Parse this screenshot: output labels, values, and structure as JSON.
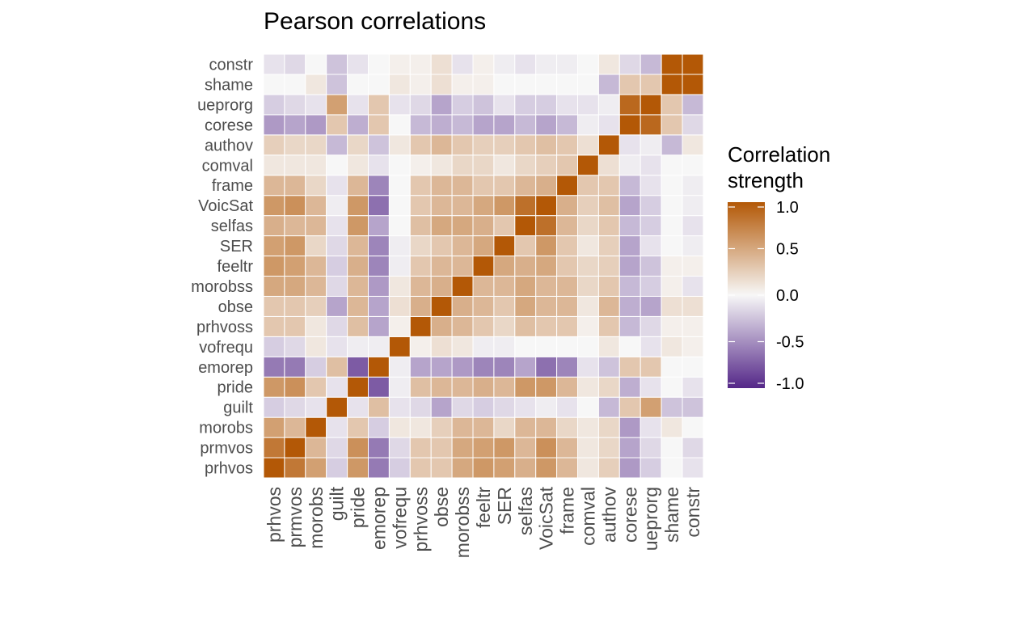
{
  "chart_data": {
    "type": "heatmap",
    "title": "Pearson correlations",
    "legend_title_lines": [
      "Correlation",
      "strength"
    ],
    "legend_ticks": [
      "1.0",
      "0.5",
      "0.0",
      "-0.5",
      "-1.0"
    ],
    "legend_tick_values": [
      1.0,
      0.5,
      0.0,
      -0.5,
      -1.0
    ],
    "legend_placement": "right",
    "value_range": [
      -1,
      1
    ],
    "colors": {
      "low": "#542788",
      "mid": "#f7f7f7",
      "high": "#b35806"
    },
    "grid": false,
    "variables": [
      "prhvos",
      "prmvos",
      "morobs",
      "guilt",
      "pride",
      "emorep",
      "vofrequ",
      "prhvoss",
      "obse",
      "morobss",
      "feeltr",
      "SER",
      "selfas",
      "VoicSat",
      "frame",
      "comval",
      "authov",
      "corese",
      "ueprorg",
      "shame",
      "constr"
    ],
    "matrix": [
      [
        1.0,
        0.8,
        0.55,
        -0.2,
        0.6,
        -0.6,
        -0.2,
        0.3,
        0.3,
        0.5,
        0.6,
        0.55,
        0.45,
        0.6,
        0.4,
        0.1,
        0.25,
        -0.45,
        -0.2,
        0.0,
        -0.1
      ],
      [
        0.8,
        1.0,
        0.4,
        -0.15,
        0.65,
        -0.6,
        -0.15,
        0.3,
        0.3,
        0.5,
        0.55,
        0.6,
        0.4,
        0.65,
        0.4,
        0.1,
        0.2,
        -0.4,
        -0.15,
        0.0,
        -0.15
      ],
      [
        0.55,
        0.4,
        1.0,
        -0.1,
        0.3,
        -0.2,
        0.1,
        0.1,
        0.25,
        0.4,
        0.4,
        0.2,
        0.4,
        0.4,
        0.2,
        0.1,
        0.2,
        -0.45,
        -0.1,
        0.1,
        0.0
      ],
      [
        -0.2,
        -0.15,
        -0.1,
        1.0,
        -0.1,
        0.35,
        -0.1,
        -0.15,
        -0.4,
        -0.15,
        -0.2,
        -0.15,
        -0.1,
        -0.05,
        -0.1,
        0.0,
        -0.3,
        0.3,
        0.55,
        -0.25,
        -0.25
      ],
      [
        0.6,
        0.65,
        0.3,
        -0.1,
        1.0,
        -0.75,
        -0.05,
        0.35,
        0.4,
        0.4,
        0.45,
        0.4,
        0.6,
        0.6,
        0.4,
        0.1,
        0.2,
        -0.35,
        -0.1,
        0.0,
        -0.1
      ],
      [
        -0.6,
        -0.6,
        -0.2,
        0.35,
        -0.75,
        1.0,
        -0.05,
        -0.4,
        -0.4,
        -0.45,
        -0.55,
        -0.55,
        -0.4,
        -0.65,
        -0.55,
        -0.1,
        -0.25,
        0.3,
        0.3,
        0.0,
        0.0
      ],
      [
        -0.2,
        -0.15,
        0.1,
        -0.1,
        -0.05,
        -0.05,
        1.0,
        0.05,
        0.15,
        0.1,
        -0.05,
        -0.05,
        0.0,
        0.0,
        0.0,
        0.0,
        0.1,
        0.0,
        -0.1,
        0.1,
        0.05
      ],
      [
        0.3,
        0.3,
        0.1,
        -0.15,
        0.35,
        -0.4,
        0.05,
        1.0,
        0.45,
        0.4,
        0.3,
        0.2,
        0.35,
        0.3,
        0.3,
        0.05,
        0.3,
        -0.3,
        -0.15,
        0.05,
        0.05
      ],
      [
        0.3,
        0.3,
        0.25,
        -0.4,
        0.4,
        -0.4,
        0.15,
        0.45,
        1.0,
        0.45,
        0.4,
        0.3,
        0.5,
        0.4,
        0.4,
        0.1,
        0.4,
        -0.35,
        -0.4,
        0.15,
        0.15
      ],
      [
        0.5,
        0.5,
        0.4,
        -0.15,
        0.4,
        -0.45,
        0.1,
        0.4,
        0.45,
        1.0,
        0.4,
        0.4,
        0.5,
        0.4,
        0.4,
        0.2,
        0.3,
        -0.3,
        -0.2,
        0.05,
        -0.1
      ],
      [
        0.6,
        0.55,
        0.4,
        -0.2,
        0.45,
        -0.55,
        -0.05,
        0.3,
        0.4,
        0.4,
        1.0,
        0.5,
        0.45,
        0.5,
        0.3,
        0.2,
        0.25,
        -0.4,
        -0.25,
        0.05,
        0.05
      ],
      [
        0.55,
        0.6,
        0.2,
        -0.15,
        0.4,
        -0.55,
        -0.05,
        0.2,
        0.3,
        0.4,
        0.5,
        1.0,
        0.3,
        0.6,
        0.3,
        0.1,
        0.25,
        -0.4,
        -0.1,
        0.0,
        -0.05
      ],
      [
        0.45,
        0.4,
        0.4,
        -0.1,
        0.6,
        -0.4,
        0.0,
        0.35,
        0.5,
        0.5,
        0.45,
        0.3,
        1.0,
        0.85,
        0.4,
        0.2,
        0.3,
        -0.3,
        -0.2,
        0.0,
        -0.1
      ],
      [
        0.6,
        0.65,
        0.4,
        -0.05,
        0.6,
        -0.65,
        0.0,
        0.3,
        0.4,
        0.4,
        0.5,
        0.6,
        0.85,
        1.0,
        0.45,
        0.25,
        0.35,
        -0.4,
        -0.2,
        0.0,
        -0.05
      ],
      [
        0.4,
        0.4,
        0.2,
        -0.1,
        0.4,
        -0.55,
        0.0,
        0.3,
        0.4,
        0.4,
        0.3,
        0.3,
        0.4,
        0.45,
        1.0,
        0.3,
        0.3,
        -0.3,
        -0.1,
        0.0,
        -0.05
      ],
      [
        0.1,
        0.1,
        0.1,
        0.0,
        0.1,
        -0.1,
        0.0,
        0.05,
        0.1,
        0.2,
        0.2,
        0.1,
        0.2,
        0.25,
        0.3,
        1.0,
        0.15,
        -0.05,
        -0.1,
        0.0,
        0.0
      ],
      [
        0.25,
        0.2,
        0.2,
        -0.3,
        0.2,
        -0.25,
        0.1,
        0.3,
        0.4,
        0.3,
        0.25,
        0.25,
        0.3,
        0.35,
        0.3,
        0.15,
        1.0,
        -0.1,
        -0.05,
        -0.3,
        0.1
      ],
      [
        -0.45,
        -0.4,
        -0.45,
        0.3,
        -0.35,
        0.3,
        0.0,
        -0.3,
        -0.35,
        -0.3,
        -0.4,
        -0.4,
        -0.3,
        -0.4,
        -0.3,
        -0.05,
        -0.1,
        1.0,
        0.9,
        0.3,
        -0.15
      ],
      [
        -0.2,
        -0.15,
        -0.1,
        0.55,
        -0.1,
        0.3,
        -0.1,
        -0.15,
        -0.4,
        -0.2,
        -0.25,
        -0.1,
        -0.2,
        -0.2,
        -0.1,
        -0.1,
        -0.05,
        0.9,
        1.0,
        0.3,
        -0.3
      ],
      [
        0.0,
        0.0,
        0.1,
        -0.25,
        0.0,
        0.0,
        0.1,
        0.05,
        0.15,
        0.05,
        0.05,
        0.0,
        0.0,
        0.0,
        0.0,
        0.0,
        -0.3,
        0.3,
        0.3,
        1.0,
        1.0
      ],
      [
        -0.1,
        -0.15,
        0.0,
        -0.25,
        -0.1,
        0.0,
        0.05,
        0.05,
        0.15,
        -0.1,
        0.05,
        -0.05,
        -0.1,
        -0.05,
        -0.05,
        0.0,
        0.1,
        -0.15,
        -0.3,
        1.0,
        1.0
      ]
    ]
  }
}
